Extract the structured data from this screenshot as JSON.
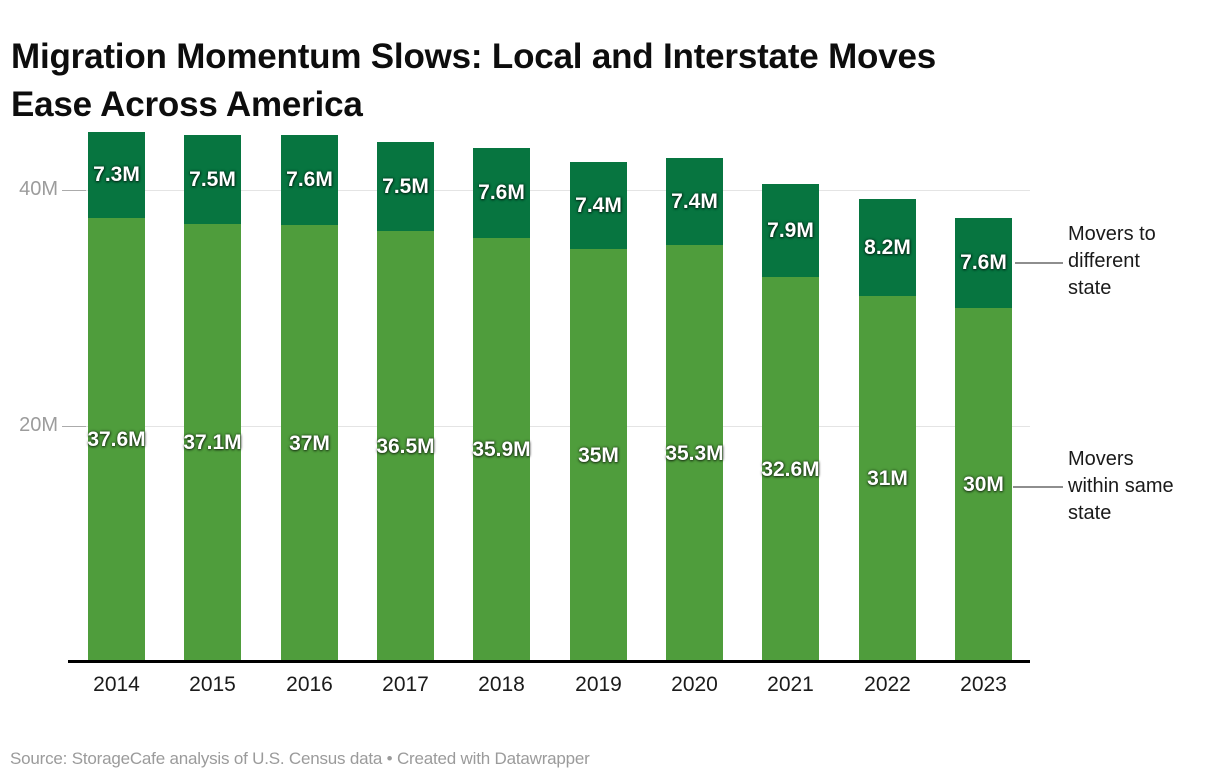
{
  "header": {
    "title": "Migration Momentum Slows: Local and Interstate Moves Ease Across America"
  },
  "chart_data": {
    "type": "bar",
    "stacked": true,
    "title": "Migration Momentum Slows: Local and Interstate Moves Ease Across America",
    "categories": [
      "2014",
      "2015",
      "2016",
      "2017",
      "2018",
      "2019",
      "2020",
      "2021",
      "2022",
      "2023"
    ],
    "series": [
      {
        "name": "Movers within same state",
        "color": "#4f9d3c",
        "values": [
          37.6,
          37.1,
          37.0,
          36.5,
          35.9,
          35.0,
          35.3,
          32.6,
          31.0,
          30.0
        ],
        "labels": [
          "37.6M",
          "37.1M",
          "37M",
          "36.5M",
          "35.9M",
          "35M",
          "35.3M",
          "32.6M",
          "31M",
          "30M"
        ]
      },
      {
        "name": "Movers to different state",
        "color": "#077540",
        "values": [
          7.3,
          7.5,
          7.6,
          7.5,
          7.6,
          7.4,
          7.4,
          7.9,
          8.2,
          7.6
        ],
        "labels": [
          "7.3M",
          "7.5M",
          "7.6M",
          "7.5M",
          "7.6M",
          "7.4M",
          "7.4M",
          "7.9M",
          "8.2M",
          "7.6M"
        ]
      }
    ],
    "unit": "M",
    "ylim": [
      0,
      47
    ],
    "yticks": [
      {
        "value": 20,
        "label": "20M"
      },
      {
        "value": 40,
        "label": "40M"
      }
    ],
    "grid": "horizontal",
    "legend_position": "right-annotations"
  },
  "annotations": {
    "different_state": {
      "lines": [
        "Movers to",
        "different",
        "state"
      ]
    },
    "same_state": {
      "lines": [
        "Movers",
        "within same",
        "state"
      ]
    }
  },
  "colors": {
    "background": "#ffffff",
    "title_text": "#0d0d0d",
    "axis_tick_text": "#9c9c9c",
    "gridline": "#e4e4e4",
    "baseline": "#000000",
    "bar_value_text": "#ffffff",
    "annotation_text": "#1a1a1a",
    "connector_line": "#8e8e8e",
    "footer_text": "#9b9b9b"
  },
  "footer": {
    "source": "Source: StorageCafe analysis of U.S. Census data • Created with Datawrapper"
  }
}
